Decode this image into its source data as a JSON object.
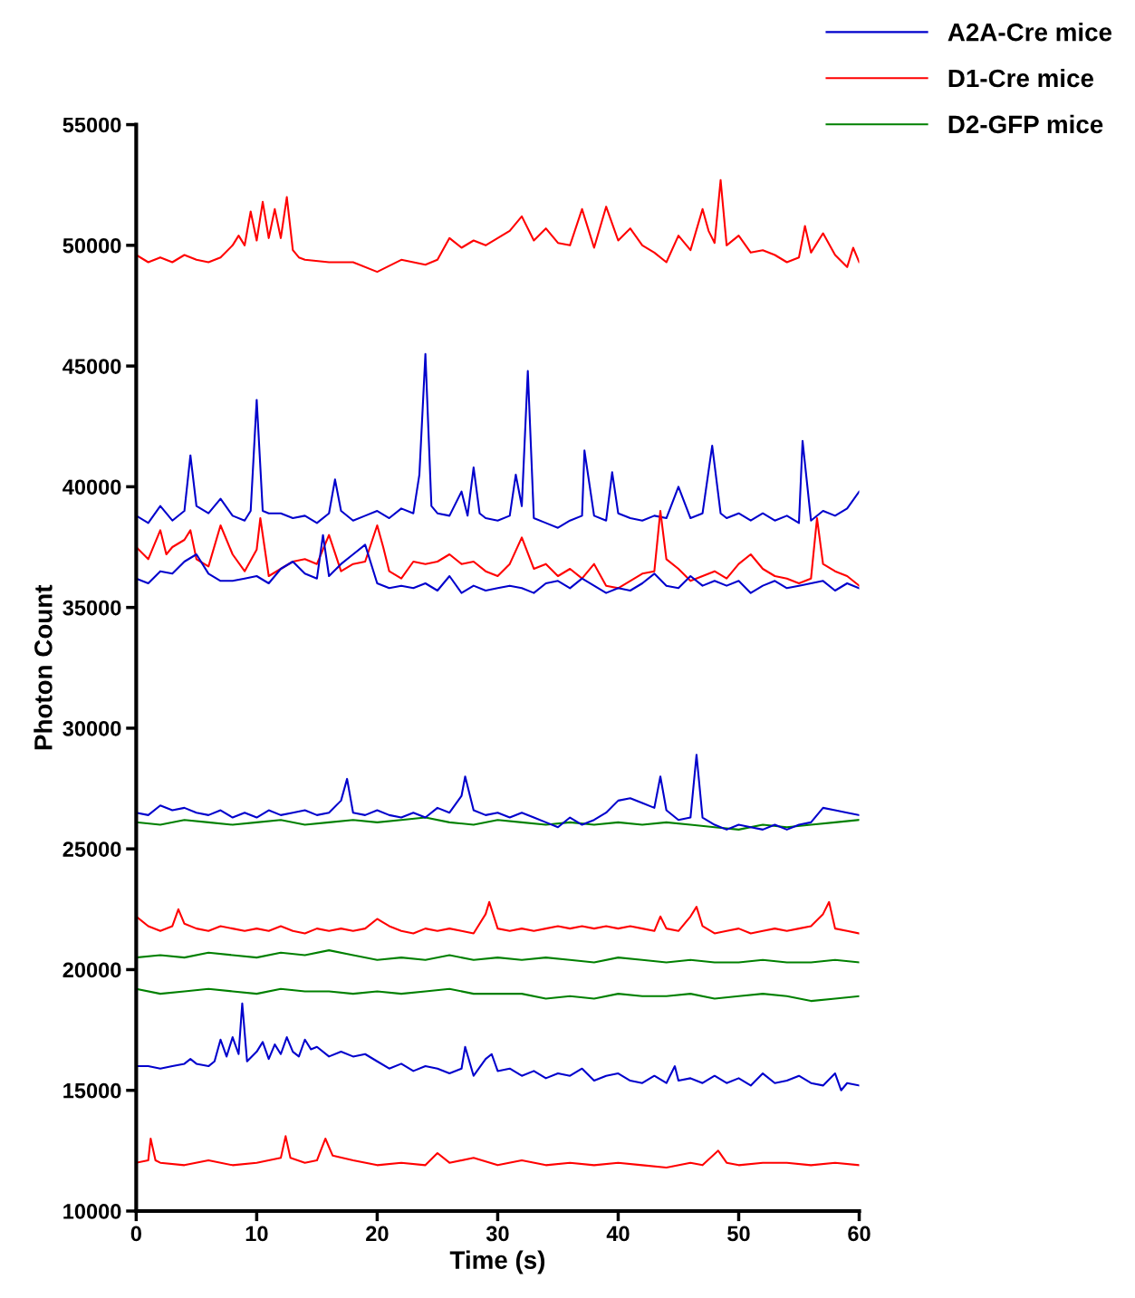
{
  "chart_data": {
    "type": "line",
    "xlabel": "Time (s)",
    "ylabel": "Photon Count",
    "xlim": [
      0,
      60
    ],
    "xticks": [
      0,
      10,
      20,
      30,
      40,
      50,
      60
    ],
    "ylim": [
      10000,
      55000
    ],
    "yticks": [
      10000,
      15000,
      20000,
      25000,
      30000,
      35000,
      40000,
      45000,
      50000,
      55000
    ],
    "grid": false,
    "legend": "top right",
    "marker": "none",
    "line_style": "solid",
    "series": [
      {
        "name": "A2A-Cre mice",
        "color": "#0000cc",
        "x": [
          0,
          1,
          2,
          3,
          4,
          4.5,
          5,
          6,
          7,
          8,
          9,
          9.5,
          10,
          10.5,
          11,
          12,
          13,
          14,
          15,
          16,
          16.5,
          17,
          18,
          19,
          20,
          21,
          22,
          23,
          23.5,
          24,
          24.5,
          25,
          26,
          27,
          27.5,
          28,
          28.5,
          29,
          30,
          31,
          31.5,
          32,
          32.5,
          33,
          34,
          35,
          36,
          37,
          37.2,
          38,
          39,
          39.5,
          40,
          41,
          42,
          43,
          44,
          45,
          46,
          47,
          47.8,
          48.5,
          49,
          50,
          51,
          52,
          53,
          54,
          55,
          55.3,
          56,
          57,
          58,
          59,
          60
        ],
        "values": [
          38800,
          38500,
          39200,
          38600,
          39000,
          41300,
          39200,
          38900,
          39500,
          38800,
          38600,
          39000,
          43600,
          39000,
          38900,
          38900,
          38700,
          38800,
          38500,
          38900,
          40300,
          39000,
          38600,
          38800,
          39000,
          38700,
          39100,
          38900,
          40500,
          45500,
          39200,
          38900,
          38800,
          39800,
          38800,
          40800,
          38900,
          38700,
          38600,
          38800,
          40500,
          39200,
          44800,
          38700,
          38500,
          38300,
          38600,
          38800,
          41500,
          38800,
          38600,
          40600,
          38900,
          38700,
          38600,
          38800,
          38700,
          40000,
          38700,
          38900,
          41700,
          38900,
          38700,
          38900,
          38600,
          38900,
          38600,
          38800,
          38500,
          41900,
          38600,
          39000,
          38800,
          39100,
          39800
        ]
      },
      {
        "name": "D1-Cre mice",
        "color": "#ff0000",
        "x": [
          0,
          1,
          2,
          3,
          4,
          5,
          6,
          7,
          8,
          8.5,
          9,
          9.5,
          10,
          10.5,
          11,
          11.5,
          12,
          12.5,
          13,
          13.5,
          14,
          16,
          18,
          20,
          22,
          24,
          25,
          26,
          27,
          28,
          29,
          30,
          31,
          32,
          33,
          34,
          35,
          36,
          37,
          38,
          39,
          40,
          41,
          42,
          43,
          44,
          45,
          46,
          47,
          47.5,
          48,
          48.5,
          49,
          50,
          51,
          52,
          53,
          54,
          55,
          55.5,
          56,
          57,
          58,
          59,
          59.5,
          60
        ],
        "values": [
          49600,
          49300,
          49500,
          49300,
          49600,
          49400,
          49300,
          49500,
          50000,
          50400,
          50000,
          51400,
          50200,
          51800,
          50300,
          51500,
          50300,
          52000,
          49800,
          49500,
          49400,
          49300,
          49300,
          48900,
          49400,
          49200,
          49400,
          50300,
          49900,
          50200,
          50000,
          50300,
          50600,
          51200,
          50200,
          50700,
          50100,
          50000,
          51500,
          49900,
          51600,
          50200,
          50700,
          50000,
          49700,
          49300,
          50400,
          49800,
          51500,
          50600,
          50100,
          52700,
          50000,
          50400,
          49700,
          49800,
          49600,
          49300,
          49500,
          50800,
          49700,
          50500,
          49600,
          49100,
          49900,
          49300
        ]
      },
      {
        "name": "D2-GFP mice",
        "color": "#008000",
        "x": [
          0,
          2,
          4,
          6,
          8,
          10,
          12,
          14,
          16,
          18,
          20,
          22,
          24,
          26,
          28,
          30,
          32,
          34,
          36,
          38,
          40,
          42,
          44,
          46,
          48,
          50,
          52,
          54,
          56,
          58,
          60
        ],
        "values": [
          26100,
          26000,
          26200,
          26100,
          26000,
          26100,
          26200,
          26000,
          26100,
          26200,
          26100,
          26200,
          26300,
          26100,
          26000,
          26200,
          26100,
          26000,
          26100,
          26000,
          26100,
          26000,
          26100,
          26000,
          25900,
          25800,
          26000,
          25900,
          26000,
          26100,
          26200
        ]
      },
      {
        "color": "#ff0000",
        "x": [
          0,
          1,
          2,
          2.5,
          3,
          4,
          4.5,
          5,
          6,
          7,
          8,
          9,
          10,
          10.3,
          11,
          12,
          13,
          14,
          15,
          16,
          17,
          18,
          19,
          20,
          20.5,
          21,
          22,
          23,
          24,
          25,
          26,
          27,
          28,
          29,
          30,
          31,
          32,
          33,
          34,
          35,
          36,
          37,
          38,
          39,
          40,
          41,
          42,
          43,
          43.5,
          44,
          45,
          46,
          47,
          48,
          49,
          50,
          51,
          52,
          53,
          54,
          55,
          56,
          56.5,
          57,
          58,
          59,
          60
        ],
        "values": [
          37500,
          37000,
          38200,
          37200,
          37500,
          37800,
          38200,
          37000,
          36700,
          38400,
          37200,
          36500,
          37400,
          38700,
          36300,
          36600,
          36900,
          37000,
          36800,
          38000,
          36500,
          36800,
          36900,
          38400,
          37500,
          36500,
          36200,
          36900,
          36800,
          36900,
          37200,
          36800,
          36900,
          36500,
          36300,
          36800,
          37900,
          36600,
          36800,
          36300,
          36600,
          36200,
          36800,
          35900,
          35800,
          36100,
          36400,
          36500,
          39000,
          37000,
          36600,
          36100,
          36300,
          36500,
          36200,
          36800,
          37200,
          36600,
          36300,
          36200,
          36000,
          36200,
          38700,
          36800,
          36500,
          36300,
          35900
        ]
      },
      {
        "color": "#0000cc",
        "x": [
          0,
          1,
          2,
          3,
          4,
          5,
          6,
          7,
          8,
          9,
          10,
          11,
          12,
          13,
          14,
          15,
          15.5,
          16,
          17,
          18,
          19,
          20,
          21,
          22,
          23,
          24,
          25,
          26,
          27,
          28,
          29,
          30,
          31,
          32,
          33,
          34,
          35,
          36,
          37,
          38,
          39,
          40,
          41,
          42,
          43,
          44,
          45,
          46,
          47,
          48,
          49,
          50,
          51,
          52,
          53,
          54,
          55,
          56,
          57,
          58,
          59,
          60
        ],
        "values": [
          36200,
          36000,
          36500,
          36400,
          36900,
          37200,
          36400,
          36100,
          36100,
          36200,
          36300,
          36000,
          36600,
          36900,
          36400,
          36200,
          38000,
          36300,
          36800,
          37200,
          37600,
          36000,
          35800,
          35900,
          35800,
          36000,
          35700,
          36300,
          35600,
          35900,
          35700,
          35800,
          35900,
          35800,
          35600,
          36000,
          36100,
          35800,
          36200,
          35900,
          35600,
          35800,
          35700,
          36000,
          36400,
          35900,
          35800,
          36300,
          35900,
          36100,
          35900,
          36100,
          35600,
          35900,
          36100,
          35800,
          35900,
          36000,
          36100,
          35700,
          36000,
          35800
        ]
      },
      {
        "color": "#0000cc",
        "x": [
          0,
          1,
          2,
          3,
          4,
          5,
          6,
          7,
          8,
          9,
          10,
          11,
          12,
          13,
          14,
          15,
          16,
          17,
          17.5,
          18,
          19,
          20,
          21,
          22,
          23,
          24,
          25,
          26,
          27,
          27.3,
          28,
          29,
          30,
          31,
          32,
          33,
          34,
          35,
          36,
          37,
          38,
          39,
          40,
          41,
          42,
          43,
          43.5,
          44,
          45,
          46,
          46.5,
          47,
          48,
          49,
          50,
          51,
          52,
          53,
          54,
          55,
          56,
          57,
          58,
          59,
          60
        ],
        "values": [
          26500,
          26400,
          26800,
          26600,
          26700,
          26500,
          26400,
          26600,
          26300,
          26500,
          26300,
          26600,
          26400,
          26500,
          26600,
          26400,
          26500,
          27000,
          27900,
          26500,
          26400,
          26600,
          26400,
          26300,
          26500,
          26300,
          26700,
          26500,
          27200,
          28000,
          26600,
          26400,
          26500,
          26300,
          26500,
          26300,
          26100,
          25900,
          26300,
          26000,
          26200,
          26500,
          27000,
          27100,
          26900,
          26700,
          28000,
          26600,
          26200,
          26300,
          28900,
          26300,
          26000,
          25800,
          26000,
          25900,
          25800,
          26000,
          25800,
          26000,
          26100,
          26700,
          26600,
          26500,
          26400
        ]
      },
      {
        "color": "#ff0000",
        "x": [
          0,
          1,
          2,
          3,
          3.5,
          4,
          5,
          6,
          7,
          8,
          9,
          10,
          11,
          12,
          13,
          14,
          15,
          16,
          17,
          18,
          19,
          20,
          21,
          22,
          23,
          24,
          25,
          26,
          27,
          28,
          29,
          29.3,
          30,
          31,
          32,
          33,
          34,
          35,
          36,
          37,
          38,
          39,
          40,
          41,
          42,
          43,
          43.5,
          44,
          45,
          46,
          46.5,
          47,
          48,
          49,
          50,
          51,
          52,
          53,
          54,
          55,
          56,
          57,
          57.5,
          58,
          59,
          60
        ],
        "values": [
          22200,
          21800,
          21600,
          21800,
          22500,
          21900,
          21700,
          21600,
          21800,
          21700,
          21600,
          21700,
          21600,
          21800,
          21600,
          21500,
          21700,
          21600,
          21700,
          21600,
          21700,
          22100,
          21800,
          21600,
          21500,
          21700,
          21600,
          21700,
          21600,
          21500,
          22300,
          22800,
          21700,
          21600,
          21700,
          21600,
          21700,
          21800,
          21700,
          21800,
          21700,
          21800,
          21700,
          21800,
          21700,
          21600,
          22200,
          21700,
          21600,
          22200,
          22600,
          21800,
          21500,
          21600,
          21700,
          21500,
          21600,
          21700,
          21600,
          21700,
          21800,
          22300,
          22800,
          21700,
          21600,
          21500
        ]
      },
      {
        "color": "#008000",
        "x": [
          0,
          2,
          4,
          6,
          8,
          10,
          12,
          14,
          16,
          18,
          20,
          22,
          24,
          26,
          28,
          30,
          32,
          34,
          36,
          38,
          40,
          42,
          44,
          46,
          48,
          50,
          52,
          54,
          56,
          58,
          60
        ],
        "values": [
          20500,
          20600,
          20500,
          20700,
          20600,
          20500,
          20700,
          20600,
          20800,
          20600,
          20400,
          20500,
          20400,
          20600,
          20400,
          20500,
          20400,
          20500,
          20400,
          20300,
          20500,
          20400,
          20300,
          20400,
          20300,
          20300,
          20400,
          20300,
          20300,
          20400,
          20300
        ]
      },
      {
        "color": "#008000",
        "x": [
          0,
          2,
          4,
          6,
          8,
          10,
          12,
          14,
          16,
          18,
          20,
          22,
          24,
          26,
          28,
          30,
          32,
          34,
          36,
          38,
          40,
          42,
          44,
          46,
          48,
          50,
          52,
          54,
          56,
          58,
          60
        ],
        "values": [
          19200,
          19000,
          19100,
          19200,
          19100,
          19000,
          19200,
          19100,
          19100,
          19000,
          19100,
          19000,
          19100,
          19200,
          19000,
          19000,
          19000,
          18800,
          18900,
          18800,
          19000,
          18900,
          18900,
          19000,
          18800,
          18900,
          19000,
          18900,
          18700,
          18800,
          18900
        ]
      },
      {
        "color": "#0000cc",
        "x": [
          0,
          1,
          2,
          3,
          4,
          4.5,
          5,
          6,
          6.5,
          7,
          7.5,
          8,
          8.5,
          8.8,
          9.2,
          10,
          10.5,
          11,
          11.5,
          12,
          12.5,
          13,
          13.5,
          14,
          14.5,
          15,
          16,
          17,
          18,
          19,
          20,
          21,
          22,
          23,
          24,
          25,
          26,
          27,
          27.3,
          28,
          29,
          29.5,
          30,
          31,
          32,
          33,
          34,
          35,
          36,
          37,
          38,
          39,
          40,
          41,
          42,
          43,
          44,
          44.7,
          45,
          46,
          47,
          48,
          49,
          50,
          51,
          52,
          53,
          54,
          55,
          56,
          57,
          58,
          58.5,
          59,
          60
        ],
        "values": [
          16000,
          16000,
          15900,
          16000,
          16100,
          16300,
          16100,
          16000,
          16200,
          17100,
          16400,
          17200,
          16500,
          18600,
          16200,
          16600,
          17000,
          16300,
          16900,
          16500,
          17200,
          16600,
          16400,
          17100,
          16700,
          16800,
          16400,
          16600,
          16400,
          16500,
          16200,
          15900,
          16100,
          15800,
          16000,
          15900,
          15700,
          15900,
          16800,
          15600,
          16300,
          16500,
          15800,
          15900,
          15600,
          15800,
          15500,
          15700,
          15600,
          15900,
          15400,
          15600,
          15700,
          15400,
          15300,
          15600,
          15300,
          16000,
          15400,
          15500,
          15300,
          15600,
          15300,
          15500,
          15200,
          15700,
          15300,
          15400,
          15600,
          15300,
          15200,
          15700,
          15000,
          15300,
          15200
        ]
      },
      {
        "color": "#ff0000",
        "x": [
          0,
          1,
          1.2,
          1.6,
          2,
          4,
          6,
          8,
          10,
          11,
          12,
          12.4,
          12.8,
          14,
          15,
          15.7,
          16.3,
          18,
          20,
          22,
          24,
          25,
          26,
          28,
          30,
          32,
          34,
          36,
          38,
          40,
          42,
          44,
          46,
          47,
          48.3,
          49,
          50,
          52,
          54,
          56,
          58,
          60
        ],
        "values": [
          12000,
          12100,
          13000,
          12100,
          12000,
          11900,
          12100,
          11900,
          12000,
          12100,
          12200,
          13100,
          12200,
          12000,
          12100,
          13000,
          12300,
          12100,
          11900,
          12000,
          11900,
          12400,
          12000,
          12200,
          11900,
          12100,
          11900,
          12000,
          11900,
          12000,
          11900,
          11800,
          12000,
          11900,
          12500,
          12000,
          11900,
          12000,
          12000,
          11900,
          12000,
          11900
        ]
      }
    ]
  }
}
